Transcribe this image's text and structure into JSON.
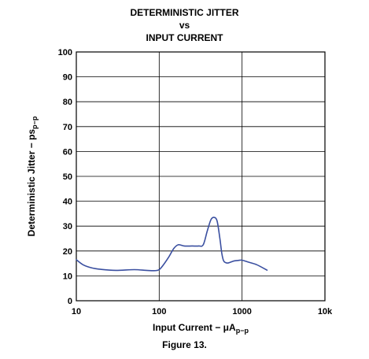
{
  "chart_data": {
    "type": "line",
    "title_lines": [
      "DETERMINISTIC JITTER",
      "vs",
      "INPUT CURRENT"
    ],
    "xlabel": "Input Current − μA",
    "xlabel_sub": "p−p",
    "ylabel": "Deterministic Jitter − ps",
    "ylabel_sub": "p−p",
    "x_scale": "log",
    "xlim": [
      10,
      10000
    ],
    "ylim": [
      0,
      100
    ],
    "x_ticks": [
      10,
      100,
      1000,
      10000
    ],
    "x_tick_labels": [
      "10",
      "100",
      "1000",
      "10k"
    ],
    "y_ticks": [
      0,
      10,
      20,
      30,
      40,
      50,
      60,
      70,
      80,
      90,
      100
    ],
    "y_tick_labels": [
      "0",
      "10",
      "20",
      "30",
      "40",
      "50",
      "60",
      "70",
      "80",
      "90",
      "100"
    ],
    "grid": true,
    "line_color": "#3a4fa0",
    "series": [
      {
        "x": [
          10,
          12,
          15,
          20,
          30,
          50,
          70,
          90,
          100,
          110,
          130,
          150,
          170,
          200,
          250,
          300,
          340,
          380,
          420,
          460,
          500,
          540,
          570,
          600,
          650,
          700,
          800,
          900,
          1000,
          1200,
          1500,
          2000
        ],
        "y": [
          16.5,
          14.5,
          13.3,
          12.6,
          12.2,
          12.5,
          12.2,
          12.1,
          12.5,
          14,
          17.5,
          21,
          22.5,
          22,
          22,
          22,
          22.5,
          28,
          32.5,
          33.5,
          32,
          25,
          19,
          16,
          15.2,
          15.3,
          16,
          16.2,
          16.3,
          15.5,
          14.5,
          12.3
        ]
      }
    ]
  },
  "caption": "Figure 13."
}
